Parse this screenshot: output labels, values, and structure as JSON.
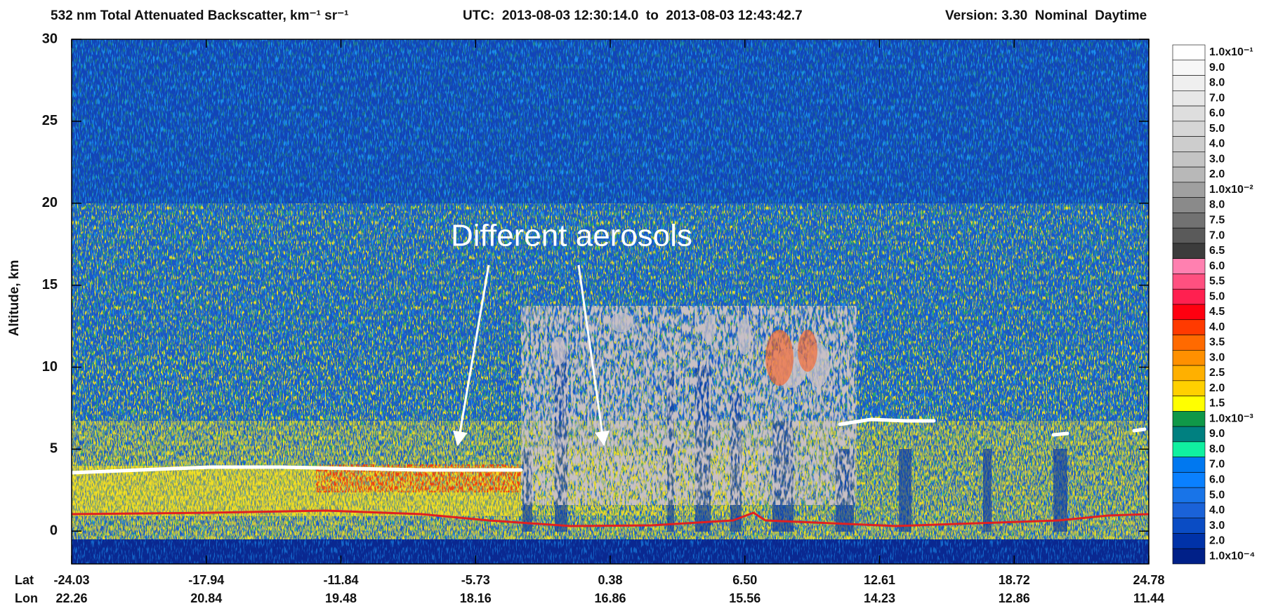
{
  "chart_data": {
    "type": "heatmap",
    "title": "532 nm Total Attenuated Backscatter, km⁻¹ sr⁻¹",
    "subtitle": "UTC:  2013-08-03 12:30:14.0  to  2013-08-03 12:43:42.7",
    "version": "Version: 3.30  Nominal  Daytime",
    "ylabel": "Altitude, km",
    "ylim": [
      -2,
      30
    ],
    "yticks": [
      0,
      5,
      10,
      15,
      20,
      25,
      30
    ],
    "x_rows": [
      {
        "name": "Lat",
        "labels": [
          "-24.03",
          "-17.94",
          "-11.84",
          "-5.73",
          "0.38",
          "6.50",
          "12.61",
          "18.72",
          "24.78"
        ]
      },
      {
        "name": "Lon",
        "labels": [
          "22.26",
          "20.84",
          "19.48",
          "18.16",
          "16.86",
          "15.56",
          "14.23",
          "12.86",
          "11.44"
        ]
      }
    ],
    "annotation": "Different aerosols",
    "colorbar": [
      {
        "value": 0.1,
        "label": "1.0x10⁻¹",
        "color": "#ffffff"
      },
      {
        "value": 0.09,
        "label": "9.0",
        "color": "#f7f7f7"
      },
      {
        "value": 0.08,
        "label": "8.0",
        "color": "#efefef"
      },
      {
        "value": 0.07,
        "label": "7.0",
        "color": "#e7e7e7"
      },
      {
        "value": 0.06,
        "label": "6.0",
        "color": "#dedede"
      },
      {
        "value": 0.05,
        "label": "5.0",
        "color": "#d6d6d6"
      },
      {
        "value": 0.04,
        "label": "4.0",
        "color": "#cdcdcd"
      },
      {
        "value": 0.03,
        "label": "3.0",
        "color": "#c4c4c4"
      },
      {
        "value": 0.02,
        "label": "2.0",
        "color": "#b8b8b8"
      },
      {
        "value": 0.01,
        "label": "1.0x10⁻²",
        "color": "#a0a0a0"
      },
      {
        "value": 0.008,
        "label": "8.0",
        "color": "#8a8a8a"
      },
      {
        "value": 0.0075,
        "label": "7.5",
        "color": "#727272"
      },
      {
        "value": 0.007,
        "label": "7.0",
        "color": "#5a5a5a"
      },
      {
        "value": 0.0065,
        "label": "6.5",
        "color": "#3c3c3c"
      },
      {
        "value": 0.006,
        "label": "6.0",
        "color": "#ff80b0"
      },
      {
        "value": 0.0055,
        "label": "5.5",
        "color": "#ff5080"
      },
      {
        "value": 0.005,
        "label": "5.0",
        "color": "#ff2050"
      },
      {
        "value": 0.0045,
        "label": "4.5",
        "color": "#ff0010"
      },
      {
        "value": 0.004,
        "label": "4.0",
        "color": "#ff3a00"
      },
      {
        "value": 0.0035,
        "label": "3.5",
        "color": "#ff6a00"
      },
      {
        "value": 0.003,
        "label": "3.0",
        "color": "#ff9000"
      },
      {
        "value": 0.0025,
        "label": "2.5",
        "color": "#ffb000"
      },
      {
        "value": 0.002,
        "label": "2.0",
        "color": "#ffd000"
      },
      {
        "value": 0.0015,
        "label": "1.5",
        "color": "#ffff00"
      },
      {
        "value": 0.001,
        "label": "1.0x10⁻³",
        "color": "#109848"
      },
      {
        "value": 0.0009,
        "label": "9.0",
        "color": "#008080"
      },
      {
        "value": 0.0008,
        "label": "8.0",
        "color": "#10f0a0"
      },
      {
        "value": 0.0007,
        "label": "7.0",
        "color": "#0078f0"
      },
      {
        "value": 0.0006,
        "label": "6.0",
        "color": "#0a80ff"
      },
      {
        "value": 0.0005,
        "label": "5.0",
        "color": "#1874e8"
      },
      {
        "value": 0.0004,
        "label": "4.0",
        "color": "#1a62d8"
      },
      {
        "value": 0.0003,
        "label": "3.0",
        "color": "#0a4cc4"
      },
      {
        "value": 0.0002,
        "label": "2.0",
        "color": "#0032a8"
      },
      {
        "value": 0.0001,
        "label": "1.0x10⁻⁴",
        "color": "#002088"
      }
    ]
  }
}
